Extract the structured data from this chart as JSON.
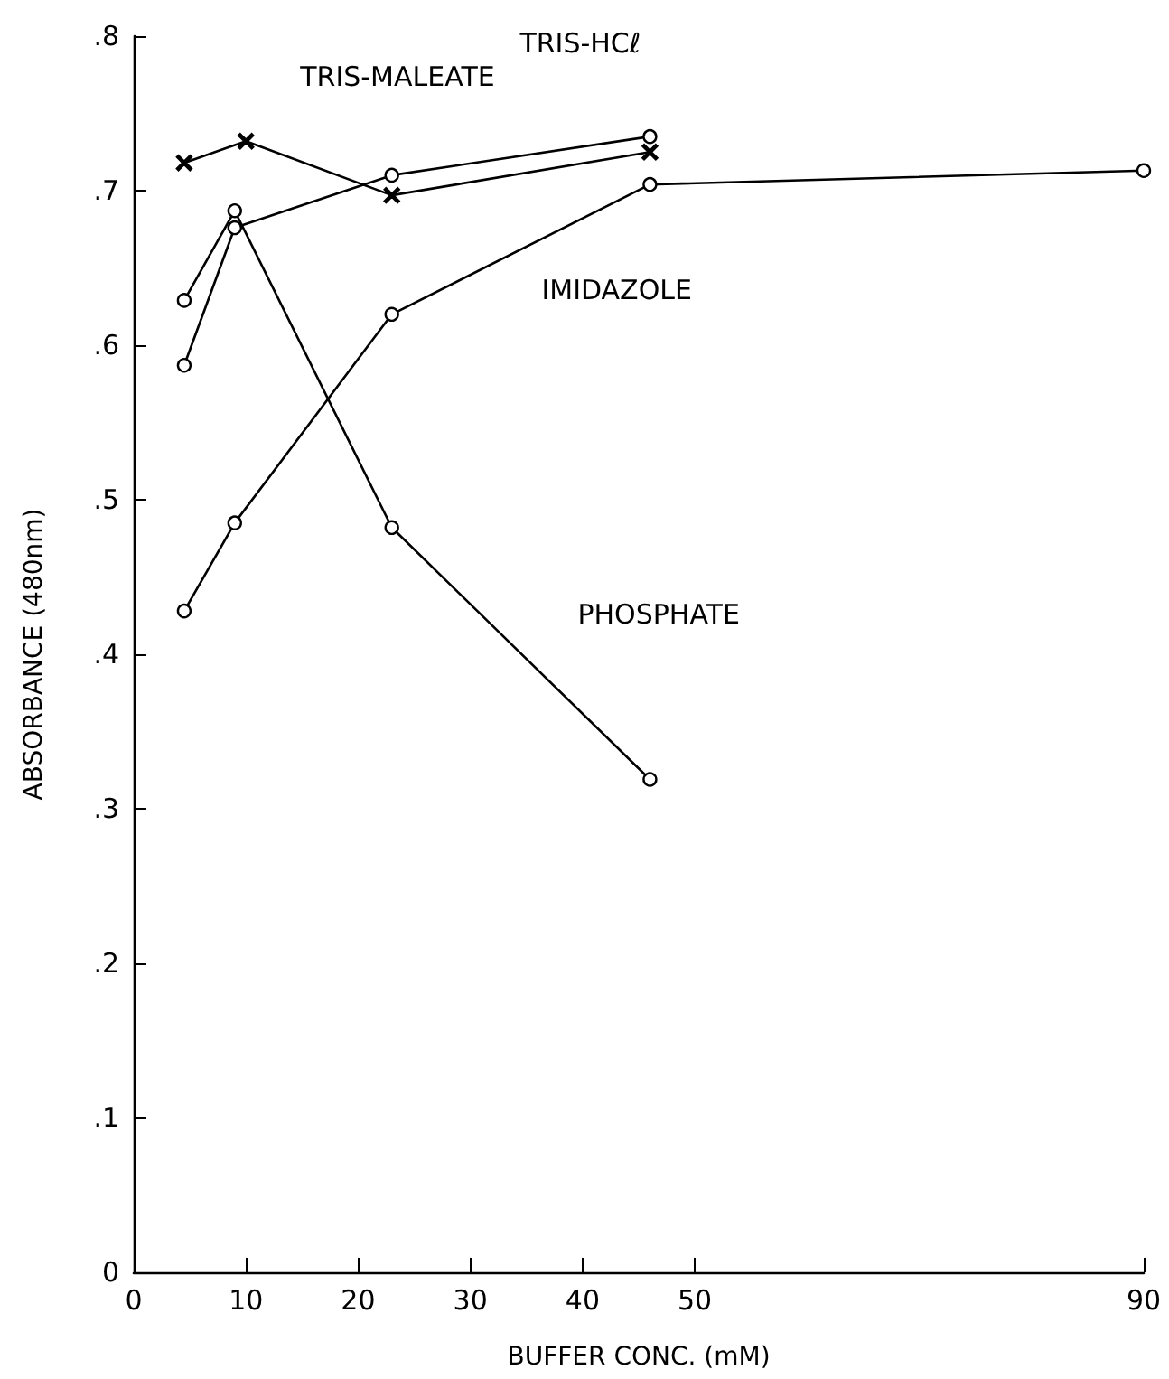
{
  "chart_data": {
    "type": "line",
    "xlabel": "BUFFER CONC. (mM)",
    "ylabel": "ABSORBANCE (480nm)",
    "xlim": [
      0,
      90
    ],
    "xticks": [
      0,
      10,
      20,
      30,
      40,
      50,
      90
    ],
    "ylim": [
      0,
      0.8
    ],
    "yticks": [
      {
        "value": 0,
        "label": "0"
      },
      {
        "value": 0.1,
        "label": ".1"
      },
      {
        "value": 0.2,
        "label": ".2"
      },
      {
        "value": 0.3,
        "label": ".3"
      },
      {
        "value": 0.4,
        "label": ".4"
      },
      {
        "value": 0.5,
        "label": ".5"
      },
      {
        "value": 0.6,
        "label": ".6"
      },
      {
        "value": 0.7,
        "label": ".7"
      },
      {
        "value": 0.8,
        "label": ".8"
      }
    ],
    "grid": false,
    "legend": false,
    "line_style": "solid",
    "series": [
      {
        "name": "TRIS-MALEATE",
        "color": "#000000",
        "marker": "cross",
        "x": [
          4.5,
          10,
          23,
          46
        ],
        "values": [
          0.718,
          0.732,
          0.697,
          0.725
        ]
      },
      {
        "name": "TRIS-HCℓ",
        "color": "#000000",
        "marker": "circle",
        "x": [
          4.5,
          9,
          23,
          46
        ],
        "values": [
          0.587,
          0.676,
          0.71,
          0.735
        ]
      },
      {
        "name": "IMIDAZOLE",
        "color": "#000000",
        "marker": "circle",
        "x": [
          4.5,
          9,
          23,
          46,
          90
        ],
        "values": [
          0.428,
          0.485,
          0.62,
          0.704,
          0.713
        ]
      },
      {
        "name": "PHOSPHATE",
        "color": "#000000",
        "marker": "circle",
        "x": [
          4.5,
          9,
          23,
          46
        ],
        "values": [
          0.629,
          0.687,
          0.482,
          0.319
        ]
      }
    ]
  }
}
